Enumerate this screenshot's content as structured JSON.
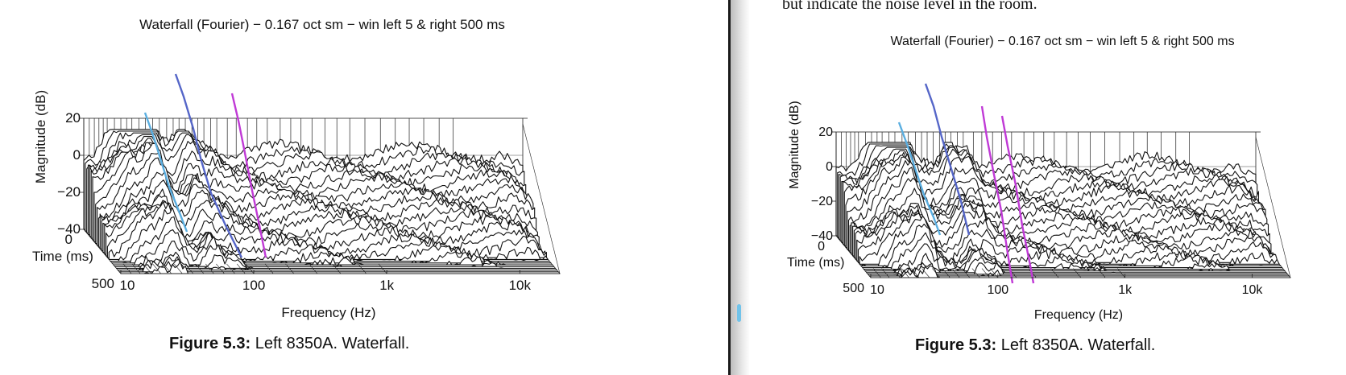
{
  "chart_data": [
    {
      "type": "waterfall",
      "title": "Waterfall (Fourier) − 0.167 oct sm − win left 5 & right 500 ms",
      "xlabel": "Frequency (Hz)",
      "ylabel": "Magnitude (dB)",
      "zlabel": "Time (ms)",
      "x_scale": "log",
      "x_ticks": [
        "10",
        "100",
        "1k",
        "10k"
      ],
      "y_ticks": [
        "20",
        "0",
        "−20",
        "−40"
      ],
      "z_ticks": [
        "0",
        "500"
      ],
      "xlim": [
        10,
        20000
      ],
      "ylim": [
        -40,
        20
      ],
      "zlim": [
        0,
        500
      ],
      "highlight_colors": [
        "#5aaee0",
        "#5566c8",
        "#c03ad6"
      ]
    },
    {
      "type": "waterfall",
      "title": "Waterfall (Fourier) − 0.167 oct sm − win left 5 & right 500 ms",
      "xlabel": "Frequency (Hz)",
      "ylabel": "Magnitude (dB)",
      "zlabel": "Time (ms)",
      "x_scale": "log",
      "x_ticks": [
        "10",
        "100",
        "1k",
        "10k"
      ],
      "y_ticks": [
        "20",
        "0",
        "−20",
        "−40"
      ],
      "z_ticks": [
        "0",
        "500"
      ],
      "xlim": [
        10,
        20000
      ],
      "ylim": [
        -40,
        20
      ],
      "zlim": [
        0,
        500
      ],
      "highlight_colors": [
        "#5aaee0",
        "#5566c8",
        "#c03ad6",
        "#c03ad6"
      ]
    }
  ],
  "left": {
    "caption_label": "Figure 5.3:",
    "caption_text": " Left 8350A. Waterfall."
  },
  "right": {
    "body_text": "but indicate the noise level in the room.",
    "caption_label": "Figure 5.3:",
    "caption_text": " Left 8350A. Waterfall."
  }
}
